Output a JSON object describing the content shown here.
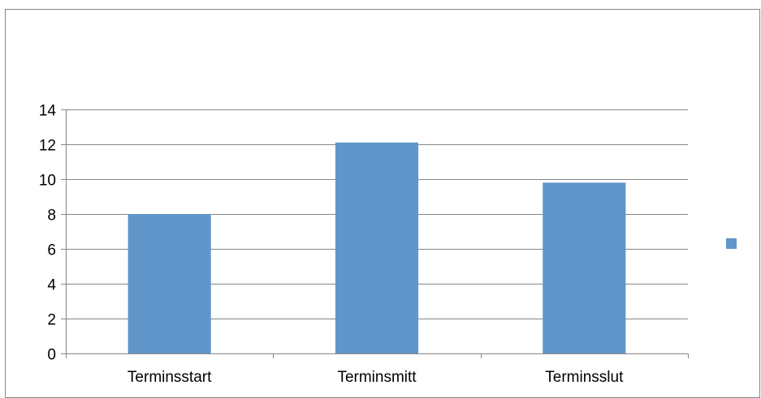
{
  "chart_data": {
    "type": "bar",
    "title": "",
    "xlabel": "",
    "ylabel": "",
    "categories": [
      "Terminsstart",
      "Terminsmitt",
      "Terminsslut"
    ],
    "series": [
      {
        "values": [
          8.0,
          12.1,
          9.8
        ],
        "color": "#6096C9"
      }
    ],
    "ylim": [
      0,
      14
    ],
    "yticks": [
      0,
      2,
      4,
      6,
      8,
      10,
      12,
      14
    ],
    "grid": true,
    "legend": "right",
    "colors": {
      "bar": "#6096C9",
      "grid": "#868686",
      "axis": "#868686",
      "text": "#000000"
    }
  }
}
